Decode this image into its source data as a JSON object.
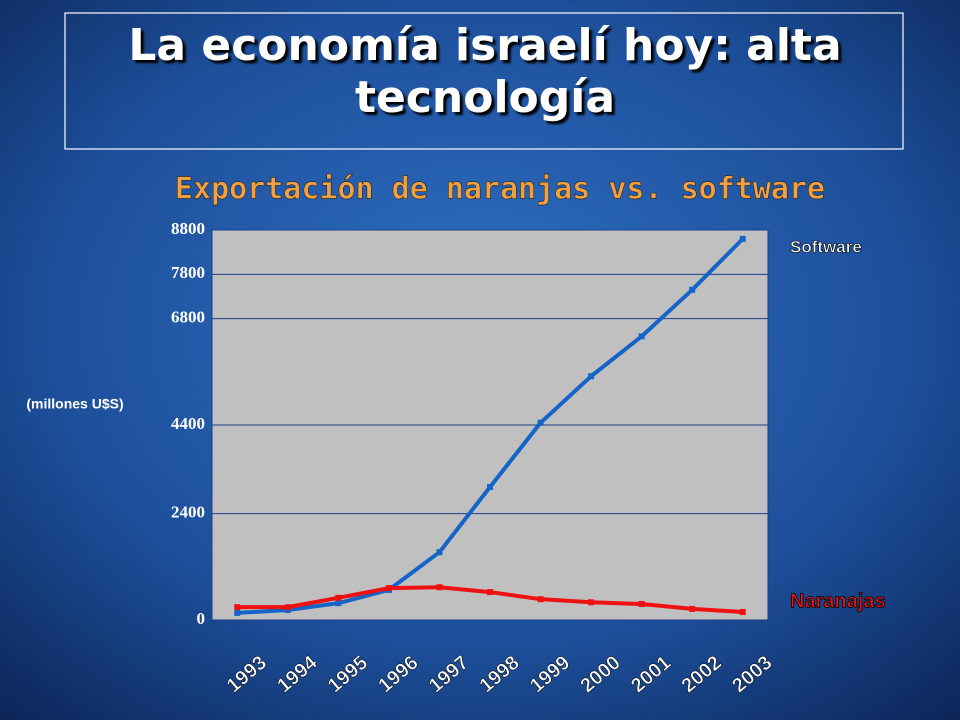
{
  "chart_data": {
    "type": "line",
    "title": "La economía israelí hoy: alta tecnología",
    "subtitle": "Exportación de naranjas vs. software",
    "y_label": "(millones U$S)",
    "categories": [
      "1993",
      "1994",
      "1995",
      "1996",
      "1997",
      "1998",
      "1999",
      "2000",
      "2001",
      "2002",
      "2003"
    ],
    "series": [
      {
        "name": "Software",
        "color": "#1565c8",
        "values": [
          160,
          225,
          380,
          680,
          1530,
          3000,
          4450,
          5500,
          6400,
          7450,
          8600
        ]
      },
      {
        "name": "Naranajas",
        "color": "#ee1111",
        "values": [
          290,
          290,
          500,
          720,
          740,
          630,
          470,
          400,
          360,
          250,
          180
        ]
      }
    ],
    "ylim": [
      0,
      8800
    ],
    "yticks": [
      0,
      2400,
      4400,
      6800,
      7800,
      8800
    ],
    "grid": true
  }
}
